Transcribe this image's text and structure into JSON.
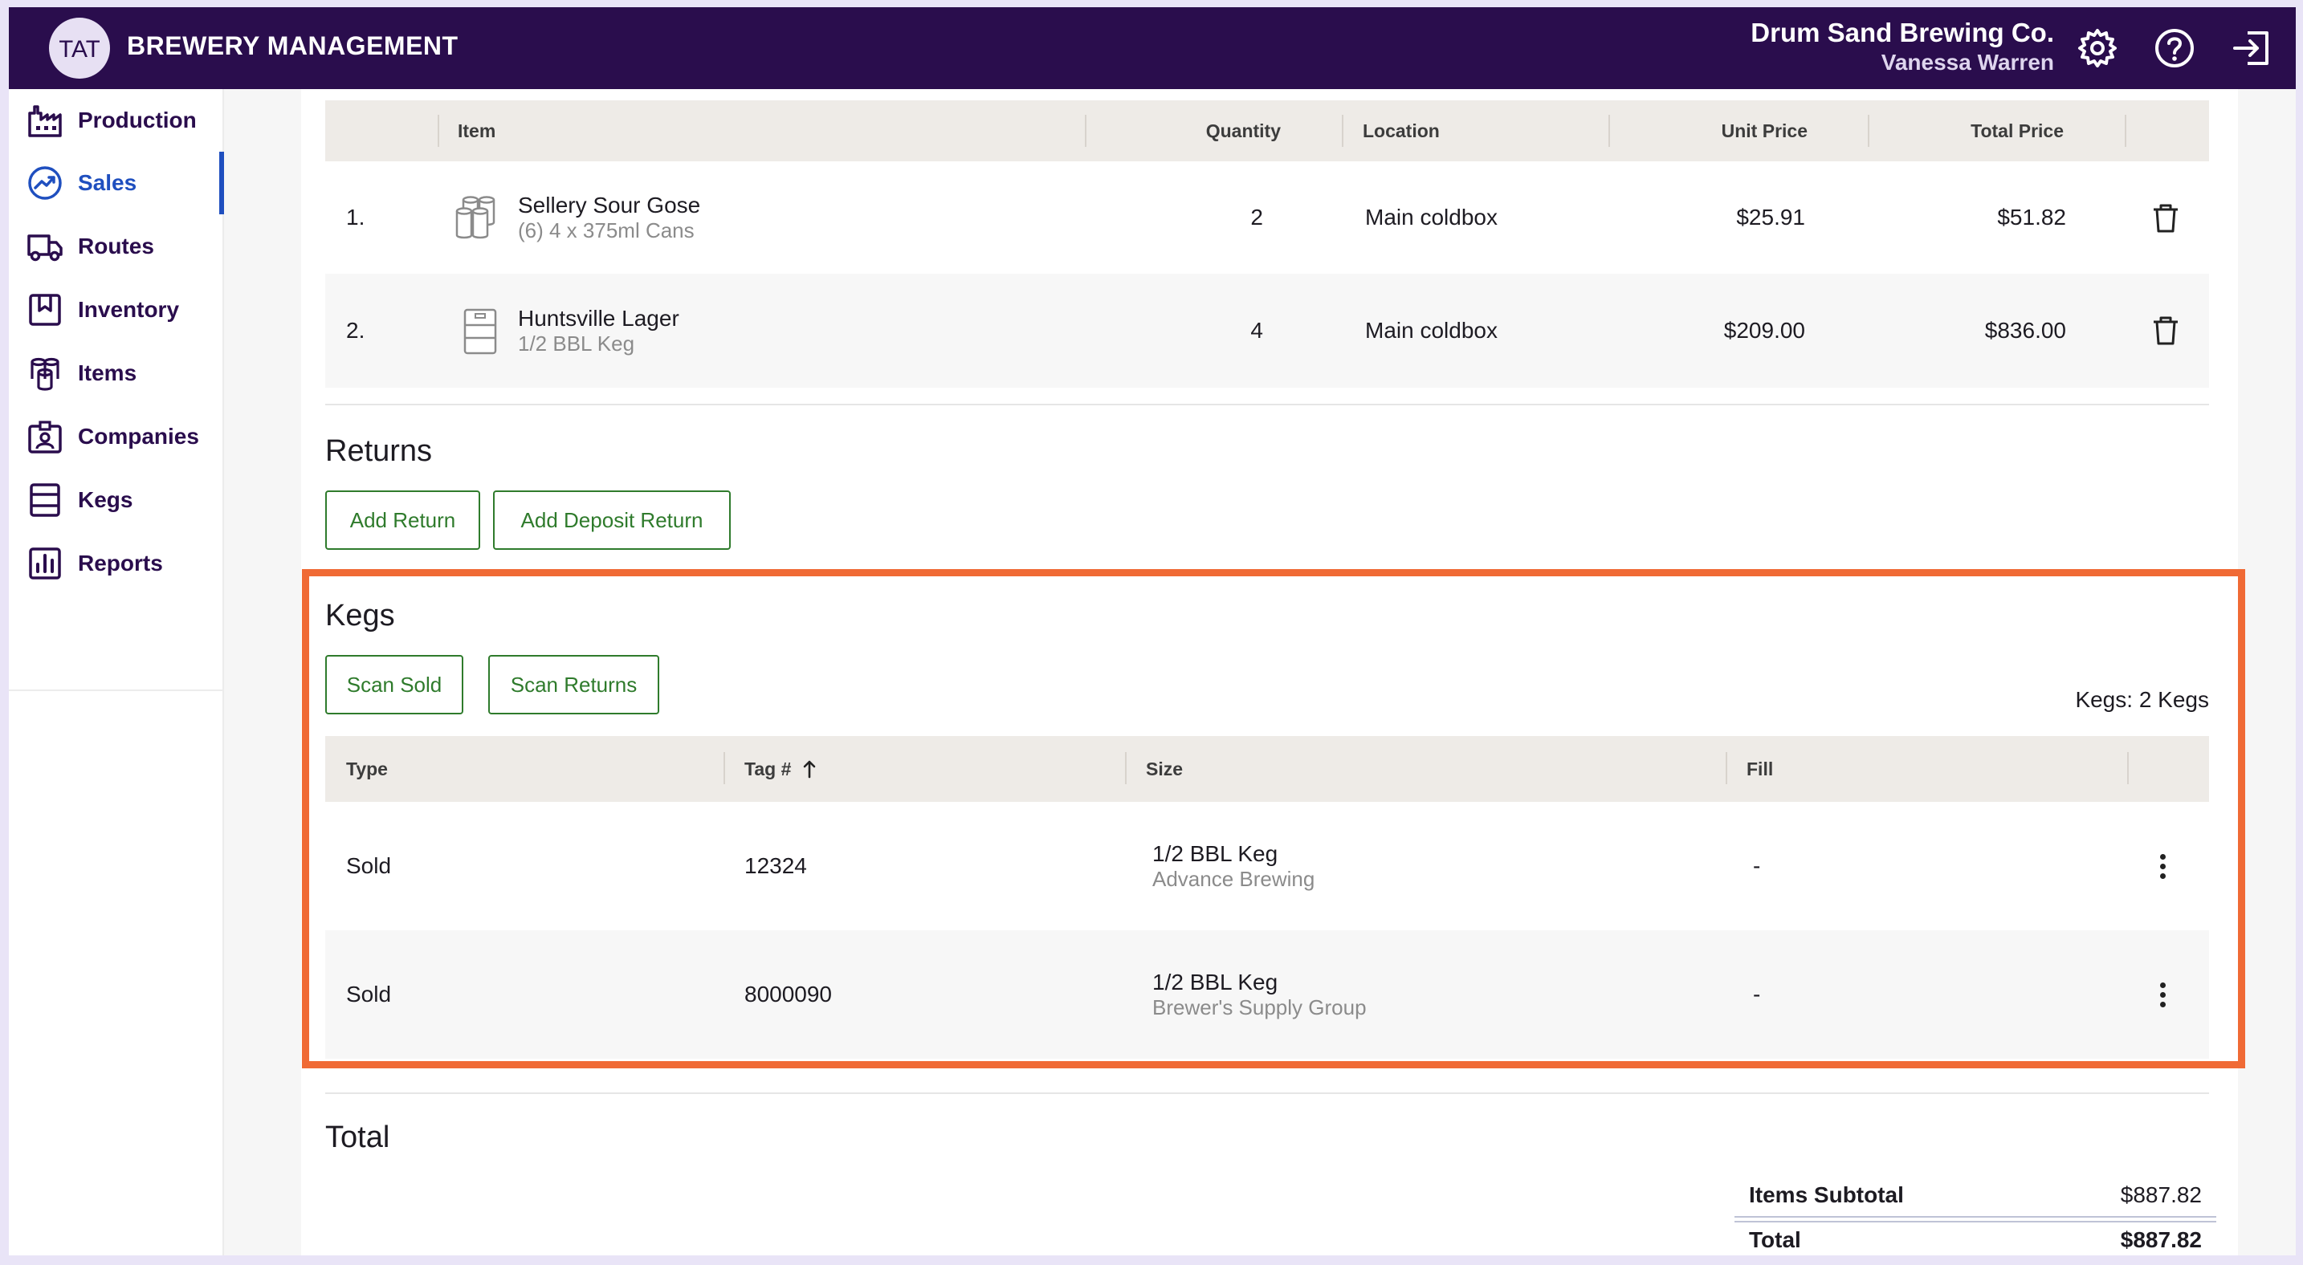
{
  "header": {
    "logo_text": "TAT",
    "app_title": "BREWERY MANAGEMENT",
    "company_name": "Drum Sand Brewing Co.",
    "user_name": "Vanessa Warren",
    "icons": [
      "gear-icon",
      "help-icon",
      "logout-icon"
    ]
  },
  "sidebar": {
    "items": [
      {
        "label": "Production",
        "icon": "factory-icon"
      },
      {
        "label": "Sales",
        "icon": "trend-icon",
        "active": true
      },
      {
        "label": "Routes",
        "icon": "truck-icon"
      },
      {
        "label": "Inventory",
        "icon": "bookmark-box-icon"
      },
      {
        "label": "Items",
        "icon": "cans-icon"
      },
      {
        "label": "Companies",
        "icon": "badge-icon"
      },
      {
        "label": "Kegs",
        "icon": "keg-icon"
      },
      {
        "label": "Reports",
        "icon": "bar-chart-icon"
      }
    ]
  },
  "items_table": {
    "headers": {
      "item": "Item",
      "quantity": "Quantity",
      "location": "Location",
      "unit_price": "Unit Price",
      "total_price": "Total Price"
    },
    "rows": [
      {
        "num": "1.",
        "name": "Sellery Sour Gose",
        "desc": "(6) 4 x 375ml Cans",
        "qty": "2",
        "location": "Main coldbox",
        "unit_price": "$25.91",
        "total_price": "$51.82"
      },
      {
        "num": "2.",
        "name": "Huntsville Lager",
        "desc": "1/2 BBL Keg",
        "qty": "4",
        "location": "Main coldbox",
        "unit_price": "$209.00",
        "total_price": "$836.00"
      }
    ]
  },
  "returns": {
    "title": "Returns",
    "add_return": "Add Return",
    "add_deposit_return": "Add Deposit Return"
  },
  "kegs": {
    "title": "Kegs",
    "scan_sold": "Scan Sold",
    "scan_returns": "Scan Returns",
    "count_label": "Kegs: 2 Kegs",
    "headers": {
      "type": "Type",
      "tag": "Tag #",
      "size": "Size",
      "fill": "Fill"
    },
    "rows": [
      {
        "type": "Sold",
        "tag": "12324",
        "size": "1/2 BBL Keg",
        "vendor": "Advance Brewing",
        "fill": "-"
      },
      {
        "type": "Sold",
        "tag": "8000090",
        "size": "1/2 BBL Keg",
        "vendor": "Brewer's Supply Group",
        "fill": "-"
      }
    ]
  },
  "total": {
    "title": "Total",
    "subtotal_label": "Items Subtotal",
    "subtotal_value": "$887.82",
    "total_label": "Total",
    "total_value": "$887.82"
  },
  "colors": {
    "header_bg": "#2a0d4d",
    "accent_active": "#1f4fbf",
    "button_green": "#2f7b2c",
    "highlight": "#f06a35"
  }
}
